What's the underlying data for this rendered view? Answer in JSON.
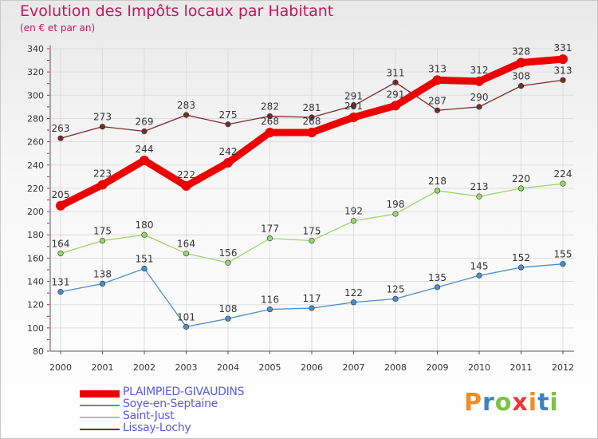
{
  "title": "Evolution des Impôts locaux par Habitant",
  "subtitle": "(en € et par an)",
  "logo": {
    "text": "Proxiti",
    "colors": [
      "#f28c28",
      "#3b82c4",
      "#7cc242",
      "#e53935",
      "#f28c28",
      "#3b82c4",
      "#7cc242"
    ]
  },
  "chart_data": {
    "type": "line",
    "title": "Evolution des Impôts locaux par Habitant",
    "subtitle": "(en € et par an)",
    "xlabel": "",
    "ylabel": "",
    "x": [
      "2000",
      "2001",
      "2002",
      "2003",
      "2004",
      "2005",
      "2006",
      "2007",
      "2008",
      "2009",
      "2010",
      "2011",
      "2012"
    ],
    "ylim": [
      80,
      340
    ],
    "yticks": [
      "80",
      "100",
      "120",
      "140",
      "160",
      "180",
      "200",
      "220",
      "240",
      "260",
      "280",
      "300",
      "320",
      "340"
    ],
    "grid": true,
    "legend_position": "bottom-left",
    "series": [
      {
        "name": "PLAIMPIED-GIVAUDINS",
        "color": "#ee0000",
        "bold": true,
        "values": [
          205,
          223,
          244,
          222,
          242,
          268,
          268,
          281,
          291,
          313,
          312,
          328,
          331
        ],
        "labels": [
          "205",
          "223",
          "244",
          "222",
          "242",
          "268",
          "268",
          "281",
          "291",
          "313",
          "312",
          "328",
          "331"
        ]
      },
      {
        "name": "Soye-en-Septaine",
        "color": "#4a8fc8",
        "bold": false,
        "values": [
          131,
          138,
          151,
          101,
          108,
          116,
          117,
          122,
          125,
          135,
          145,
          152,
          155
        ],
        "labels": [
          "131",
          "138",
          "151",
          "101",
          "108",
          "116",
          "117",
          "122",
          "125",
          "135",
          "145",
          "152",
          "155"
        ]
      },
      {
        "name": "Saint-Just",
        "color": "#9ad56f",
        "bold": false,
        "values": [
          164,
          175,
          180,
          164,
          156,
          177,
          175,
          192,
          198,
          218,
          213,
          220,
          224
        ],
        "labels": [
          "164",
          "175",
          "180",
          "164",
          "156",
          "177",
          "175",
          "192",
          "198",
          "218",
          "213",
          "220",
          "224"
        ]
      },
      {
        "name": "Lissay-Lochy",
        "color": "#7a2a2a",
        "bold": false,
        "values": [
          263,
          273,
          269,
          283,
          275,
          282,
          281,
          291,
          311,
          287,
          290,
          308,
          313
        ],
        "labels": [
          "263",
          "273",
          "269",
          "283",
          "275",
          "282",
          "281",
          "291",
          "311",
          "287",
          "290",
          "308",
          "313"
        ]
      }
    ]
  }
}
